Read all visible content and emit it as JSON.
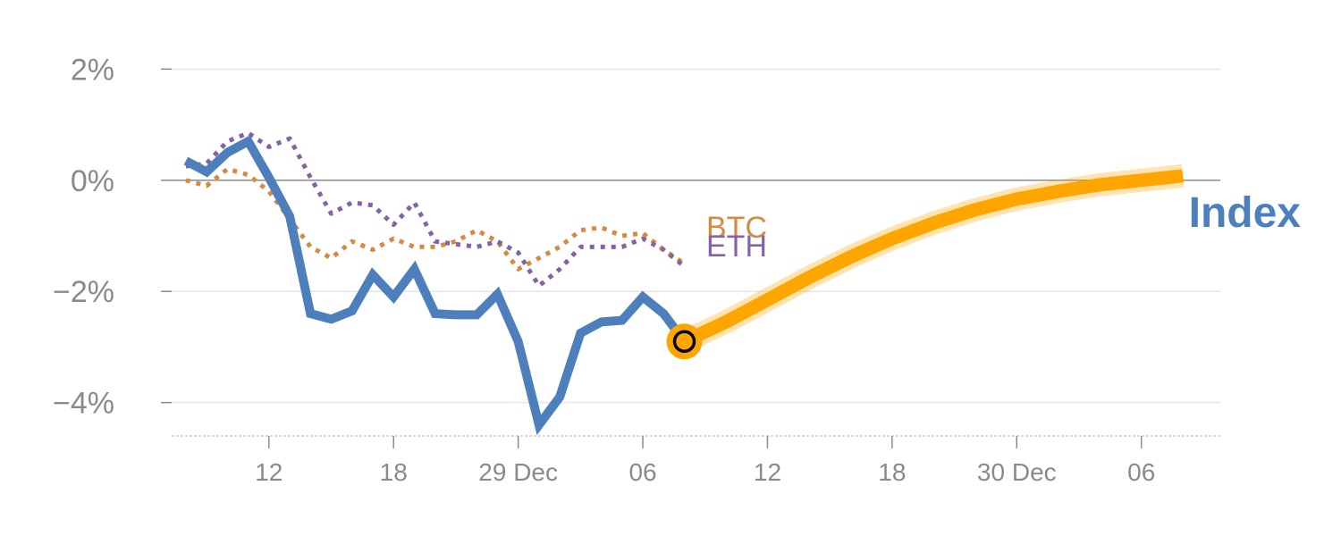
{
  "chart_data": {
    "type": "line",
    "title": "",
    "xlabel": "",
    "ylabel": "",
    "ylim": [
      -4.6,
      2.6
    ],
    "y_ticks": [
      {
        "value": 2,
        "label": "2%"
      },
      {
        "value": 0,
        "label": "0%"
      },
      {
        "value": -2,
        "label": "−2%"
      },
      {
        "value": -4,
        "label": "−4%"
      }
    ],
    "x_ticks": [
      {
        "index": 4,
        "label": "12"
      },
      {
        "index": 10,
        "label": "18"
      },
      {
        "index": 16,
        "label": "29 Dec"
      },
      {
        "index": 22,
        "label": "06"
      },
      {
        "index": 28,
        "label": "12"
      },
      {
        "index": 34,
        "label": "18"
      },
      {
        "index": 40,
        "label": "30 Dec"
      },
      {
        "index": 46,
        "label": "06"
      }
    ],
    "x_range": [
      -1.2,
      49.8
    ],
    "series": [
      {
        "name": "Index",
        "label": "Index",
        "color": "#4e7fbd",
        "style": "solid",
        "x": [
          0,
          1,
          2,
          3,
          4,
          5,
          6,
          7,
          8,
          9,
          10,
          11,
          12,
          13,
          14,
          15,
          16,
          17,
          18,
          19,
          20,
          21,
          22,
          23,
          24
        ],
        "values": [
          0.35,
          0.15,
          0.5,
          0.7,
          0.05,
          -0.65,
          -2.4,
          -2.5,
          -2.35,
          -1.7,
          -2.1,
          -1.6,
          -2.4,
          -2.42,
          -2.42,
          -2.05,
          -2.9,
          -4.4,
          -3.9,
          -2.75,
          -2.55,
          -2.52,
          -2.1,
          -2.4,
          -2.9
        ]
      },
      {
        "name": "BTC",
        "label": "BTC",
        "color": "#d68a3f",
        "style": "dotted",
        "x": [
          0,
          1,
          2,
          3,
          4,
          5,
          6,
          7,
          8,
          9,
          10,
          11,
          12,
          13,
          14,
          15,
          16,
          17,
          18,
          19,
          20,
          21,
          22,
          23,
          24
        ],
        "values": [
          0.0,
          -0.1,
          0.2,
          0.1,
          -0.2,
          -0.7,
          -1.2,
          -1.4,
          -1.1,
          -1.25,
          -1.05,
          -1.2,
          -1.2,
          -1.1,
          -0.9,
          -1.1,
          -1.6,
          -1.4,
          -1.2,
          -0.9,
          -0.85,
          -1.0,
          -0.95,
          -1.25,
          -1.5
        ]
      },
      {
        "name": "ETH",
        "label": "ETH",
        "color": "#8462a8",
        "style": "dotted",
        "x": [
          0,
          1,
          2,
          3,
          4,
          5,
          6,
          7,
          8,
          9,
          10,
          11,
          12,
          13,
          14,
          15,
          16,
          17,
          18,
          19,
          20,
          21,
          22,
          23,
          24
        ],
        "values": [
          0.25,
          0.3,
          0.7,
          0.85,
          0.6,
          0.75,
          0.05,
          -0.6,
          -0.4,
          -0.45,
          -0.8,
          -0.4,
          -1.1,
          -1.15,
          -1.2,
          -1.1,
          -1.3,
          -1.9,
          -1.6,
          -1.2,
          -1.2,
          -1.2,
          -1.05,
          -1.25,
          -1.55
        ]
      },
      {
        "name": "Forecast",
        "label": "",
        "color": "#ffa500",
        "style": "solid-thick",
        "x": [
          24,
          26,
          28,
          30,
          32,
          34,
          36,
          38,
          40,
          42,
          44,
          46,
          48
        ],
        "values": [
          -2.9,
          -2.55,
          -2.15,
          -1.75,
          -1.38,
          -1.05,
          -0.77,
          -0.53,
          -0.34,
          -0.2,
          -0.08,
          0.0,
          0.08
        ]
      }
    ],
    "marker": {
      "series": "Index",
      "index": 24,
      "value": -2.9,
      "color": "#ffa500"
    }
  }
}
